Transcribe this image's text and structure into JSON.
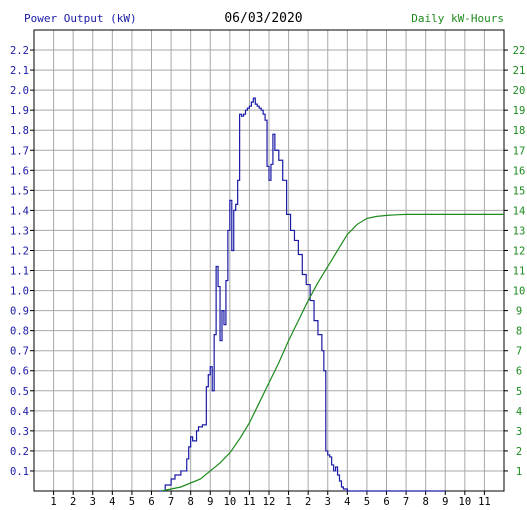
{
  "chart_data": {
    "type": "line",
    "title": "06/03/2020",
    "left_axis_title": "Power Output (kW)",
    "right_axis_title": "Daily kW-Hours",
    "x_tick_labels": [
      "1",
      "2",
      "3",
      "4",
      "5",
      "6",
      "7",
      "8",
      "9",
      "10",
      "11",
      "12",
      "1",
      "2",
      "3",
      "4",
      "5",
      "6",
      "7",
      "8",
      "9",
      "10",
      "11"
    ],
    "x_range_hours": [
      0,
      24
    ],
    "y_left_range": [
      0,
      2.3
    ],
    "y_left_ticks": [
      "0.1",
      "0.2",
      "0.3",
      "0.4",
      "0.5",
      "0.6",
      "0.7",
      "0.8",
      "0.9",
      "1.0",
      "1.1",
      "1.2",
      "1.3",
      "1.4",
      "1.5",
      "1.6",
      "1.7",
      "1.8",
      "1.9",
      "2.0",
      "2.1",
      "2.2"
    ],
    "y_right_range": [
      0,
      23
    ],
    "y_right_ticks": [
      "1",
      "2",
      "3",
      "4",
      "5",
      "6",
      "7",
      "8",
      "9",
      "10",
      "11",
      "12",
      "13",
      "14",
      "15",
      "16",
      "17",
      "18",
      "19",
      "20",
      "21",
      "22"
    ],
    "grid": true,
    "colors": {
      "power": "#1a1aa6",
      "energy": "#1d8a1d",
      "grid": "#a8a8a8",
      "axis": "#000000"
    },
    "series": [
      {
        "axis": "left",
        "x": [
          6.4,
          6.7,
          7.0,
          7.2,
          7.5,
          7.8,
          7.9,
          8.0,
          8.1,
          8.3,
          8.4,
          8.6,
          8.8,
          8.9,
          9.0,
          9.1,
          9.2,
          9.3,
          9.4,
          9.5,
          9.6,
          9.7,
          9.8,
          9.9,
          10.0,
          10.1,
          10.2,
          10.3,
          10.4,
          10.5,
          10.6,
          10.7,
          10.8,
          10.9,
          11.0,
          11.1,
          11.2,
          11.3,
          11.4,
          11.5,
          11.6,
          11.7,
          11.8,
          11.9,
          12.0,
          12.1,
          12.2,
          12.3,
          12.5,
          12.7,
          12.9,
          13.1,
          13.3,
          13.5,
          13.7,
          13.9,
          14.1,
          14.3,
          14.5,
          14.7,
          14.8,
          14.9,
          15.0,
          15.1,
          15.2,
          15.3,
          15.4,
          15.5,
          15.6,
          15.7,
          15.8,
          15.9,
          16.0,
          16.1,
          16.2,
          16.3,
          16.4,
          16.5,
          16.6,
          16.7,
          16.8,
          16.9,
          17.0,
          17.1,
          17.2,
          17.3,
          17.4,
          17.5,
          17.6,
          17.7,
          17.8,
          17.9,
          18.0,
          18.1,
          18.2,
          18.3,
          18.5,
          18.7,
          18.9,
          19.1,
          19.3,
          19.5,
          19.7,
          19.9,
          20.2,
          20.5,
          20.8,
          21.0
        ],
        "y": [
          0.0,
          0.03,
          0.06,
          0.08,
          0.1,
          0.16,
          0.22,
          0.27,
          0.25,
          0.3,
          0.32,
          0.33,
          0.52,
          0.58,
          0.62,
          0.5,
          0.78,
          1.12,
          1.02,
          0.75,
          0.9,
          0.83,
          1.05,
          1.3,
          1.45,
          1.2,
          1.4,
          1.43,
          1.55,
          1.88,
          1.87,
          1.88,
          1.9,
          1.91,
          1.92,
          1.94,
          1.96,
          1.93,
          1.92,
          1.91,
          1.9,
          1.88,
          1.85,
          1.62,
          1.55,
          1.63,
          1.78,
          1.7,
          1.65,
          1.55,
          1.38,
          1.3,
          1.25,
          1.18,
          1.08,
          1.03,
          0.95,
          0.85,
          0.78,
          0.7,
          0.6,
          0.2,
          0.18,
          0.17,
          0.13,
          0.1,
          0.12,
          0.08,
          0.05,
          0.02,
          0.01,
          0.01,
          0.0,
          0.0,
          0.0,
          0.0,
          0.0,
          0.0,
          0.0,
          0.0,
          0.0,
          0.0,
          0.0,
          0.0,
          0.0,
          0.0,
          0.0,
          0.0,
          0.0,
          0.0,
          0.0,
          0.0,
          0.0,
          0.0,
          0.0,
          0.0,
          0.0,
          0.0,
          0.0,
          0.0,
          0.0,
          0.0,
          0.0,
          0.0,
          0.0,
          0.0,
          0.0,
          0.0
        ],
        "x_fix": [
          6.4,
          6.7,
          7.0,
          7.2,
          7.5,
          7.8,
          7.9,
          8.0,
          8.1,
          8.3,
          8.4,
          8.6,
          8.8,
          8.9,
          9.0,
          9.1,
          9.2,
          9.3,
          9.4,
          9.5,
          9.6,
          9.7,
          9.8,
          9.9,
          10.0,
          10.1,
          10.2,
          10.3,
          10.4,
          10.5,
          10.9,
          11.3,
          11.7,
          12.1,
          12.5,
          12.7,
          12.9,
          13.1,
          13.3,
          13.5,
          13.7,
          13.9,
          14.1,
          14.3,
          14.5,
          14.7,
          14.9,
          15.1,
          15.3,
          15.5,
          15.7,
          15.9,
          16.1,
          16.3,
          16.5,
          16.7,
          16.9,
          17.1,
          17.3,
          17.5,
          17.7,
          17.9,
          18.1,
          18.3,
          18.5,
          18.7,
          18.9,
          19.1,
          19.3,
          19.5,
          19.7,
          19.9,
          20.2,
          20.5,
          21.0
        ]
      },
      {
        "axis": "right",
        "x": [
          6.5,
          7.5,
          8.5,
          9.0,
          9.5,
          10.0,
          10.5,
          11.0,
          11.5,
          12.0,
          12.5,
          13.0,
          13.5,
          14.0,
          14.5,
          15.0,
          15.5,
          16.0,
          16.5,
          17.0,
          17.5,
          18.0,
          18.5,
          19.0,
          20.0,
          22.0,
          24.0
        ],
        "y": [
          0.0,
          0.2,
          0.6,
          1.0,
          1.4,
          1.9,
          2.6,
          3.4,
          4.4,
          5.4,
          6.4,
          7.5,
          8.5,
          9.5,
          10.4,
          11.2,
          12.0,
          12.8,
          13.3,
          13.6,
          13.7,
          13.75,
          13.78,
          13.8,
          13.8,
          13.8,
          13.8
        ]
      }
    ]
  }
}
